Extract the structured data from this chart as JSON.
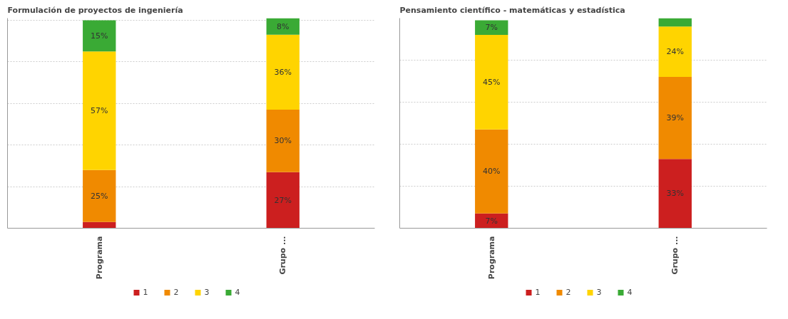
{
  "chart_data": [
    {
      "type": "bar",
      "title": "Formulación de proyectos de ingeniería",
      "categories": [
        "Programa",
        "Grupo ..."
      ],
      "stacked": true,
      "tick_labels": "x",
      "grid": "y",
      "legend": "bottom",
      "series": [
        {
          "name": "1",
          "color": "#cc1f1f",
          "values": [
            3,
            27
          ],
          "value_labels": [
            null,
            "27%"
          ]
        },
        {
          "name": "2",
          "color": "#f08a00",
          "values": [
            25,
            30
          ],
          "value_labels": [
            "25%",
            "30%"
          ]
        },
        {
          "name": "3",
          "color": "#ffd400",
          "values": [
            57,
            36
          ],
          "value_labels": [
            "57%",
            "36%"
          ]
        },
        {
          "name": "4",
          "color": "#3aaa35",
          "values": [
            15,
            8
          ],
          "value_labels": [
            "15%",
            "8%"
          ]
        }
      ]
    },
    {
      "type": "bar",
      "title": "Pensamiento científico - matemáticas y estadística",
      "categories": [
        "Programa",
        "Grupo ..."
      ],
      "stacked": true,
      "tick_labels": "x",
      "grid": "y",
      "legend": "bottom",
      "series": [
        {
          "name": "1",
          "color": "#cc1f1f",
          "values": [
            7,
            33
          ],
          "value_labels": [
            "7%",
            "33%"
          ]
        },
        {
          "name": "2",
          "color": "#f08a00",
          "values": [
            40,
            39
          ],
          "value_labels": [
            "40%",
            "39%"
          ]
        },
        {
          "name": "3",
          "color": "#ffd400",
          "values": [
            45,
            24
          ],
          "value_labels": [
            "45%",
            "24%"
          ]
        },
        {
          "name": "4",
          "color": "#3aaa35",
          "values": [
            7,
            4
          ],
          "value_labels": [
            "7%",
            null
          ]
        }
      ]
    }
  ]
}
